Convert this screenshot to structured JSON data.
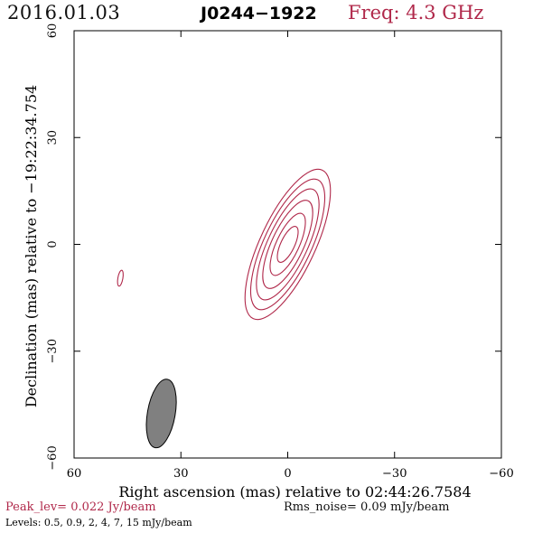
{
  "header": {
    "date": "2016.01.03",
    "source": "J0244−1922",
    "frequency": "Freq: 4.3 GHz"
  },
  "chart_data": {
    "type": "contour",
    "xlabel": "Right ascension (mas) relative to 02:44:26.7584",
    "ylabel": "Declination (mas) relative to −19:22:34.754",
    "xlim": [
      60,
      -60
    ],
    "ylim": [
      -60,
      60
    ],
    "x_ticks": [
      60,
      30,
      0,
      -30,
      -60
    ],
    "y_ticks": [
      -60,
      -30,
      0,
      30,
      60
    ],
    "x_tick_labels": [
      "60",
      "30",
      "0",
      "−30",
      "−60"
    ],
    "y_tick_labels": [
      "−60",
      "−30",
      "0",
      "30",
      "60"
    ],
    "contour_color": "#b0284a",
    "beam_color": "#808080",
    "main_component": {
      "center": [
        0,
        0
      ],
      "position_angle_deg": 155,
      "contours": [
        {
          "major": 46,
          "minor": 15.5
        },
        {
          "major": 40,
          "minor": 13.4
        },
        {
          "major": 34,
          "minor": 11.2
        },
        {
          "major": 27,
          "minor": 9.0
        },
        {
          "major": 19,
          "minor": 6.4
        },
        {
          "major": 11,
          "minor": 3.9
        }
      ]
    },
    "secondary_component": {
      "center": [
        47,
        -9.5
      ],
      "position_angle_deg": 170,
      "contours": [
        {
          "major": 4.5,
          "minor": 1.4
        }
      ]
    },
    "beam": {
      "center": [
        35.5,
        -47.5
      ],
      "major": 19.5,
      "minor": 7.8,
      "position_angle_deg": 170
    }
  },
  "footer": {
    "peak": "Peak_lev=  0.022 Jy/beam",
    "rms": "Rms_noise= 0.09 mJy/beam",
    "levels": "Levels: 0.5, 0.9,    2,    4,    7,   15 mJy/beam"
  }
}
